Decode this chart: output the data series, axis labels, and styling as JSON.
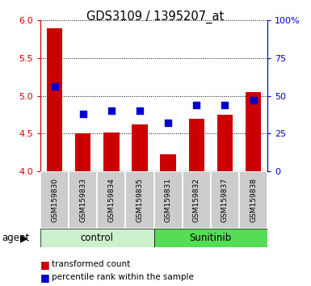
{
  "title": "GDS3109 / 1395207_at",
  "samples": [
    "GSM159830",
    "GSM159833",
    "GSM159834",
    "GSM159835",
    "GSM159831",
    "GSM159832",
    "GSM159837",
    "GSM159838"
  ],
  "red_values": [
    5.89,
    4.5,
    4.52,
    4.62,
    4.23,
    4.7,
    4.75,
    5.05
  ],
  "blue_pct": [
    56,
    38,
    40,
    40,
    32,
    44,
    44,
    47
  ],
  "ylim_left": [
    4.0,
    6.0
  ],
  "ylim_right": [
    0,
    100
  ],
  "yticks_left": [
    4.0,
    4.5,
    5.0,
    5.5,
    6.0
  ],
  "yticks_right": [
    0,
    25,
    50,
    75,
    100
  ],
  "ytick_labels_right": [
    "0",
    "25",
    "50",
    "75",
    "100%"
  ],
  "bar_color": "#cc0000",
  "dot_color": "#0000cc",
  "control_label": "control",
  "sunitinib_label": "Sunitinib",
  "agent_label": "agent",
  "legend_red": "transformed count",
  "legend_blue": "percentile rank within the sample",
  "control_bg": "#ccf0cc",
  "sunitinib_bg": "#55dd55",
  "sample_bg": "#cccccc",
  "left_tick_color": "#cc0000",
  "right_tick_color": "#0000cc",
  "bar_width": 0.55,
  "dot_size": 40,
  "n_control": 4,
  "n_sunitinib": 4
}
